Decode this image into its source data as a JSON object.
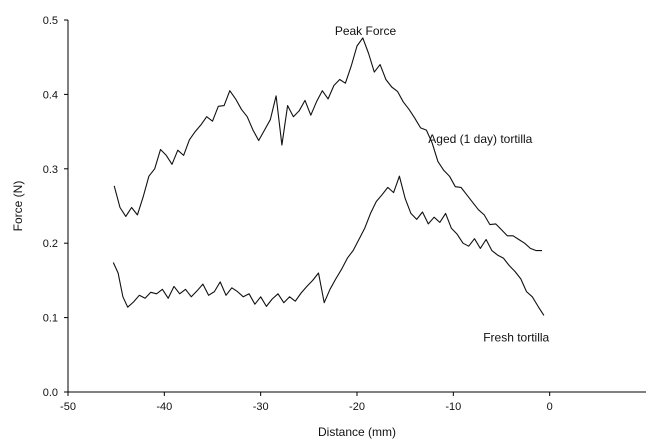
{
  "chart_data": {
    "type": "line",
    "title": "",
    "xlabel": "Distance (mm)",
    "ylabel": "Force (N)",
    "xlim": [
      -50,
      10
    ],
    "ylim": [
      0,
      0.5
    ],
    "x_ticks": [
      -50,
      -40,
      -30,
      -20,
      -10,
      0
    ],
    "x_tick_labels": [
      "-50",
      "-40",
      "-30",
      "-20",
      "-10",
      "0"
    ],
    "y_ticks": [
      0,
      0.1,
      0.2,
      0.3,
      0.4,
      0.5
    ],
    "y_tick_labels": [
      "0.0",
      "0.1",
      "0.2",
      "0.3",
      "0.4",
      "0.5"
    ],
    "grid": false,
    "series": [
      {
        "name": "Aged (1 day) tortilla",
        "x": [
          -45.2,
          -44.6,
          -44.0,
          -43.4,
          -42.8,
          -42.2,
          -41.6,
          -41.0,
          -40.4,
          -39.8,
          -39.2,
          -38.6,
          -38.0,
          -37.4,
          -36.8,
          -36.2,
          -35.6,
          -35.0,
          -34.4,
          -33.8,
          -33.2,
          -32.6,
          -32.0,
          -31.4,
          -30.8,
          -30.2,
          -29.6,
          -29.0,
          -28.4,
          -27.8,
          -27.2,
          -26.6,
          -26.0,
          -25.4,
          -24.8,
          -24.2,
          -23.6,
          -23.0,
          -22.4,
          -21.8,
          -21.2,
          -20.6,
          -20.0,
          -19.4,
          -18.8,
          -18.2,
          -17.6,
          -17.0,
          -16.4,
          -15.8,
          -15.2,
          -14.6,
          -14.0,
          -13.4,
          -12.8,
          -12.2,
          -11.6,
          -11.0,
          -10.4,
          -9.8,
          -9.2,
          -8.6,
          -8.0,
          -7.4,
          -6.8,
          -6.2,
          -5.6,
          -5.0,
          -4.4,
          -3.8,
          -3.2,
          -2.6,
          -2.0,
          -1.4,
          -0.8
        ],
        "values": [
          0.277,
          0.248,
          0.236,
          0.248,
          0.238,
          0.262,
          0.29,
          0.3,
          0.326,
          0.318,
          0.306,
          0.325,
          0.318,
          0.339,
          0.35,
          0.359,
          0.37,
          0.364,
          0.384,
          0.385,
          0.405,
          0.394,
          0.38,
          0.37,
          0.352,
          0.338,
          0.352,
          0.366,
          0.398,
          0.332,
          0.385,
          0.37,
          0.378,
          0.392,
          0.372,
          0.39,
          0.405,
          0.394,
          0.412,
          0.42,
          0.415,
          0.438,
          0.465,
          0.476,
          0.455,
          0.43,
          0.44,
          0.42,
          0.41,
          0.404,
          0.39,
          0.38,
          0.368,
          0.355,
          0.352,
          0.335,
          0.31,
          0.298,
          0.29,
          0.276,
          0.275,
          0.265,
          0.255,
          0.245,
          0.238,
          0.225,
          0.226,
          0.218,
          0.21,
          0.21,
          0.205,
          0.2,
          0.193,
          0.19,
          0.19
        ]
      },
      {
        "name": "Fresh tortilla",
        "x": [
          -45.3,
          -44.8,
          -44.3,
          -43.8,
          -43.2,
          -42.6,
          -42.0,
          -41.4,
          -40.8,
          -40.2,
          -39.6,
          -39.0,
          -38.4,
          -37.8,
          -37.2,
          -36.6,
          -36.0,
          -35.4,
          -34.8,
          -34.2,
          -33.6,
          -33.0,
          -32.4,
          -31.8,
          -31.2,
          -30.6,
          -30.0,
          -29.4,
          -28.8,
          -28.2,
          -27.6,
          -27.0,
          -26.4,
          -25.8,
          -25.2,
          -24.6,
          -24.0,
          -23.4,
          -22.8,
          -22.2,
          -21.6,
          -21.0,
          -20.4,
          -19.8,
          -19.2,
          -18.6,
          -18.0,
          -17.4,
          -16.8,
          -16.2,
          -15.6,
          -15.0,
          -14.4,
          -13.8,
          -13.2,
          -12.6,
          -12.0,
          -11.4,
          -10.8,
          -10.2,
          -9.6,
          -9.0,
          -8.4,
          -7.8,
          -7.2,
          -6.6,
          -6.0,
          -5.4,
          -4.8,
          -4.2,
          -3.6,
          -3.0,
          -2.4,
          -1.8,
          -1.2,
          -0.6
        ],
        "values": [
          0.174,
          0.16,
          0.128,
          0.114,
          0.121,
          0.13,
          0.126,
          0.134,
          0.132,
          0.138,
          0.126,
          0.142,
          0.132,
          0.138,
          0.128,
          0.136,
          0.145,
          0.13,
          0.135,
          0.148,
          0.13,
          0.14,
          0.135,
          0.128,
          0.132,
          0.118,
          0.128,
          0.115,
          0.125,
          0.132,
          0.12,
          0.128,
          0.122,
          0.133,
          0.142,
          0.15,
          0.16,
          0.12,
          0.138,
          0.152,
          0.165,
          0.18,
          0.19,
          0.205,
          0.22,
          0.24,
          0.256,
          0.265,
          0.275,
          0.268,
          0.29,
          0.26,
          0.24,
          0.232,
          0.242,
          0.226,
          0.235,
          0.228,
          0.24,
          0.22,
          0.212,
          0.2,
          0.196,
          0.206,
          0.193,
          0.205,
          0.19,
          0.184,
          0.18,
          0.17,
          0.162,
          0.152,
          0.135,
          0.128,
          0.115,
          0.103
        ]
      }
    ],
    "annotations": [
      {
        "text": "Peak Force",
        "x": -22.3,
        "y": 0.48
      },
      {
        "text": "Aged (1 day) tortilla",
        "x": -12.6,
        "y": 0.335
      },
      {
        "text": "Fresh tortilla",
        "x": -6.9,
        "y": 0.068
      }
    ]
  }
}
